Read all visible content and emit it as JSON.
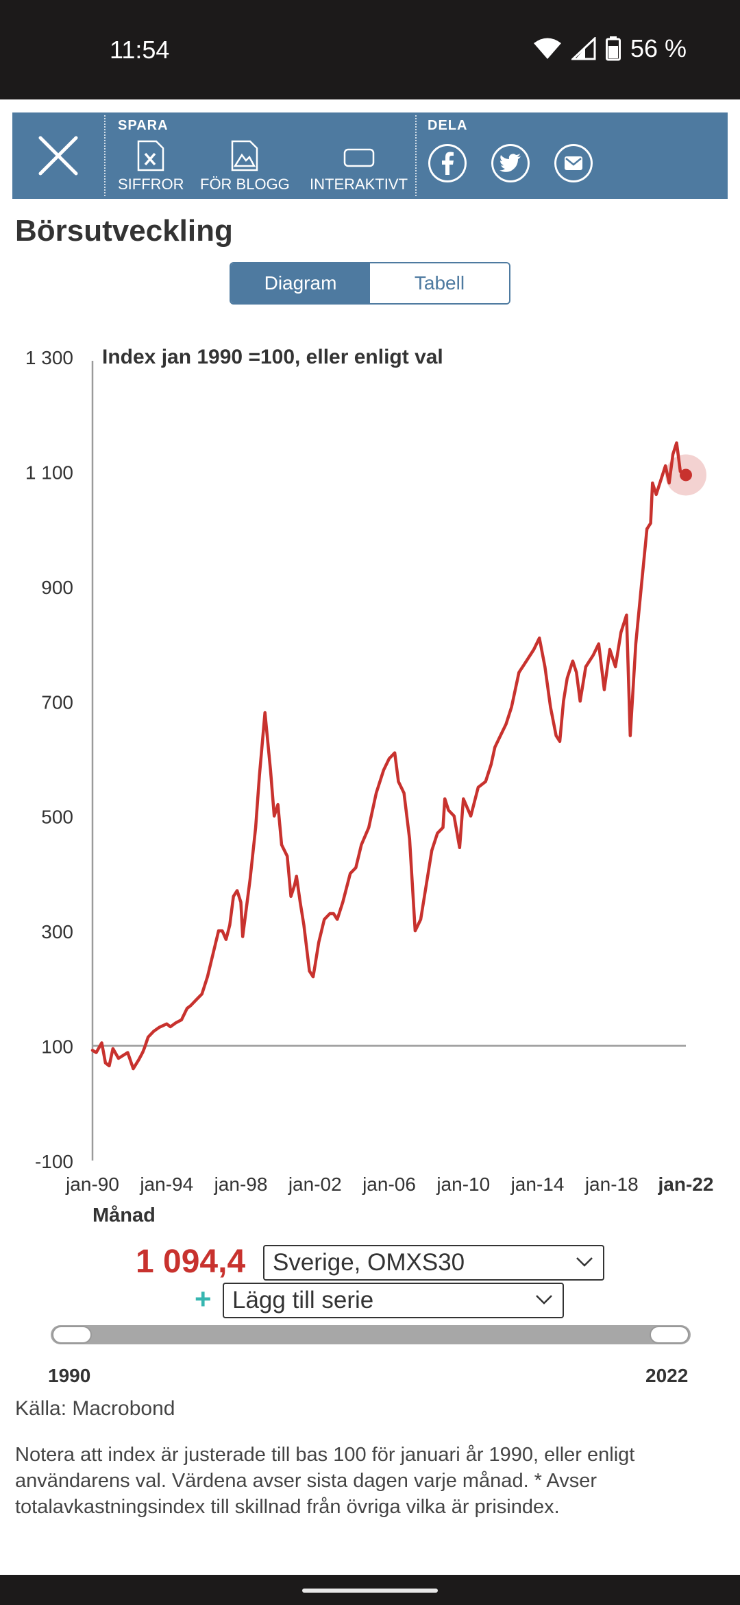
{
  "status_bar": {
    "time": "11:54",
    "battery": "56 %"
  },
  "toolbar": {
    "save_label": "SPARA",
    "share_label": "DELA",
    "save_items": [
      {
        "label": "SIFFROR",
        "icon": "excel-file-icon"
      },
      {
        "label": "FÖR BLOGG",
        "icon": "image-file-icon"
      },
      {
        "label": "INTERAKTIVT",
        "icon": "interactive-icon"
      }
    ],
    "share_items": [
      "facebook-icon",
      "twitter-icon",
      "email-icon"
    ]
  },
  "page": {
    "title": "Börsutveckling",
    "tabs": [
      {
        "label": "Diagram",
        "active": true
      },
      {
        "label": "Tabell",
        "active": false
      }
    ]
  },
  "chart_data": {
    "type": "line",
    "title": "Index jan 1990 =100, eller enligt val",
    "xlabel": "Månad",
    "ylabel": "",
    "ylim": [
      -100,
      1300
    ],
    "yticks": [
      1300,
      1100,
      900,
      700,
      500,
      300,
      100,
      -100
    ],
    "ytick_labels": [
      "1 300",
      "1 100",
      "900",
      "700",
      "500",
      "300",
      "100",
      "-100"
    ],
    "xticks": [
      1990,
      1994,
      1998,
      2002,
      2006,
      2010,
      2014,
      2018,
      2022
    ],
    "xtick_labels": [
      "jan-90",
      "jan-94",
      "jan-98",
      "jan-02",
      "jan-06",
      "jan-10",
      "jan-14",
      "jan-18",
      "jan-22"
    ],
    "xlim": [
      1990,
      2022
    ],
    "reference_line": 100,
    "grid": false,
    "line_color": "#c8322e",
    "series": [
      {
        "name": "Sverige, OMXS30",
        "x": [
          1990.0,
          1990.2,
          1990.5,
          1990.7,
          1990.9,
          1991.1,
          1991.4,
          1991.6,
          1991.9,
          1992.2,
          1992.5,
          1992.7,
          1992.8,
          1993.0,
          1993.3,
          1993.6,
          1994.0,
          1994.2,
          1994.5,
          1994.8,
          1995.1,
          1995.3,
          1995.6,
          1995.9,
          1996.2,
          1996.5,
          1996.8,
          1997.0,
          1997.2,
          1997.4,
          1997.6,
          1997.8,
          1998.0,
          1998.1,
          1998.3,
          1998.5,
          1998.8,
          1999.0,
          1999.3,
          1999.6,
          1999.8,
          2000.0,
          2000.2,
          2000.5,
          2000.7,
          2000.9,
          2001.0,
          2001.2,
          2001.4,
          2001.7,
          2001.9,
          2002.0,
          2002.2,
          2002.5,
          2002.8,
          2003.0,
          2003.2,
          2003.5,
          2003.9,
          2004.2,
          2004.5,
          2004.9,
          2005.3,
          2005.7,
          2006.0,
          2006.3,
          2006.5,
          2006.8,
          2007.1,
          2007.4,
          2007.7,
          2008.0,
          2008.3,
          2008.6,
          2008.9,
          2009.0,
          2009.2,
          2009.5,
          2009.8,
          2010.0,
          2010.4,
          2010.8,
          2011.2,
          2011.5,
          2011.7,
          2012.0,
          2012.3,
          2012.6,
          2013.0,
          2013.4,
          2013.8,
          2014.1,
          2014.4,
          2014.7,
          2015.0,
          2015.2,
          2015.4,
          2015.6,
          2015.9,
          2016.1,
          2016.3,
          2016.6,
          2017.0,
          2017.3,
          2017.6,
          2017.9,
          2018.2,
          2018.5,
          2018.8,
          2019.0,
          2019.3,
          2019.6,
          2019.9,
          2020.1,
          2020.2,
          2020.4,
          2020.7,
          2020.9,
          2021.1,
          2021.3,
          2021.5,
          2021.7,
          2021.9,
          2022.0
        ],
        "values": [
          92,
          88,
          105,
          70,
          65,
          95,
          78,
          82,
          88,
          60,
          76,
          88,
          96,
          115,
          125,
          132,
          138,
          133,
          140,
          145,
          165,
          170,
          180,
          190,
          220,
          260,
          300,
          300,
          285,
          310,
          360,
          370,
          350,
          290,
          340,
          390,
          480,
          570,
          680,
          580,
          500,
          520,
          450,
          430,
          360,
          380,
          395,
          350,
          310,
          230,
          220,
          240,
          280,
          320,
          330,
          330,
          320,
          350,
          400,
          410,
          450,
          480,
          540,
          580,
          600,
          610,
          560,
          540,
          460,
          300,
          320,
          380,
          440,
          470,
          480,
          530,
          510,
          500,
          445,
          530,
          500,
          550,
          560,
          590,
          620,
          640,
          660,
          690,
          750,
          770,
          790,
          810,
          760,
          690,
          640,
          630,
          700,
          740,
          770,
          750,
          700,
          760,
          780,
          800,
          720,
          790,
          760,
          820,
          850,
          640,
          800,
          900,
          1000,
          1010,
          1080,
          1060,
          1090,
          1110,
          1080,
          1130,
          1150,
          1100,
          1094,
          1094
        ]
      }
    ]
  },
  "controls": {
    "current_value": "1 094,4",
    "series_select": "Sverige, OMXS30",
    "add_series": "Lägg till serie",
    "add_symbol": "+",
    "range_start": "1990",
    "range_end": "2022"
  },
  "footer": {
    "source": "Källa: Macrobond",
    "note": "Notera att index är justerade till bas 100 för januari år 1990, eller enligt användarens val. Värdena avser sista dagen varje månad. * Avser totalavkastningsindex till skillnad från övriga vilka är prisindex."
  }
}
